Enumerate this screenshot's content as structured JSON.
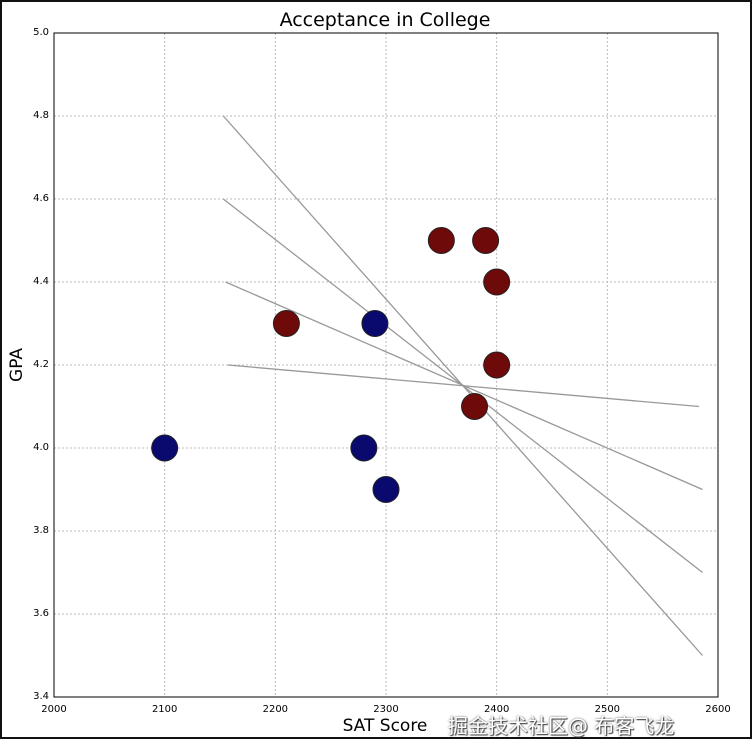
{
  "chart_data": {
    "type": "scatter",
    "title": "Acceptance in College",
    "xlabel": "SAT Score",
    "ylabel": "GPA",
    "xlim": [
      2000,
      2600
    ],
    "ylim": [
      3.4,
      5.0
    ],
    "xticks": [
      2000,
      2100,
      2200,
      2300,
      2400,
      2500,
      2600
    ],
    "yticks": [
      3.4,
      3.6,
      3.8,
      4.0,
      4.2,
      4.4,
      4.6,
      4.8,
      5.0
    ],
    "grid": true,
    "series": [
      {
        "color": "#0a0a6e",
        "points": [
          [
            2100,
            4.0
          ],
          [
            2280,
            4.0
          ],
          [
            2290,
            4.3
          ],
          [
            2300,
            3.9
          ]
        ]
      },
      {
        "color": "#6e0a0a",
        "points": [
          [
            2210,
            4.3
          ],
          [
            2350,
            4.5
          ],
          [
            2390,
            4.5
          ],
          [
            2400,
            4.4
          ],
          [
            2400,
            4.2
          ],
          [
            2380,
            4.1
          ]
        ]
      }
    ],
    "lines": [
      {
        "color": "#999999",
        "from": [
          2153,
          4.8
        ],
        "to": [
          2586,
          3.5
        ]
      },
      {
        "color": "#999999",
        "from": [
          2153,
          4.6
        ],
        "to": [
          2586,
          3.7
        ]
      },
      {
        "color": "#999999",
        "from": [
          2155,
          4.4
        ],
        "to": [
          2586,
          3.9
        ]
      },
      {
        "color": "#999999",
        "from": [
          2157,
          4.2
        ],
        "to": [
          2583,
          4.1
        ]
      }
    ]
  },
  "watermark": "掘金技术社区@ 布客飞龙"
}
